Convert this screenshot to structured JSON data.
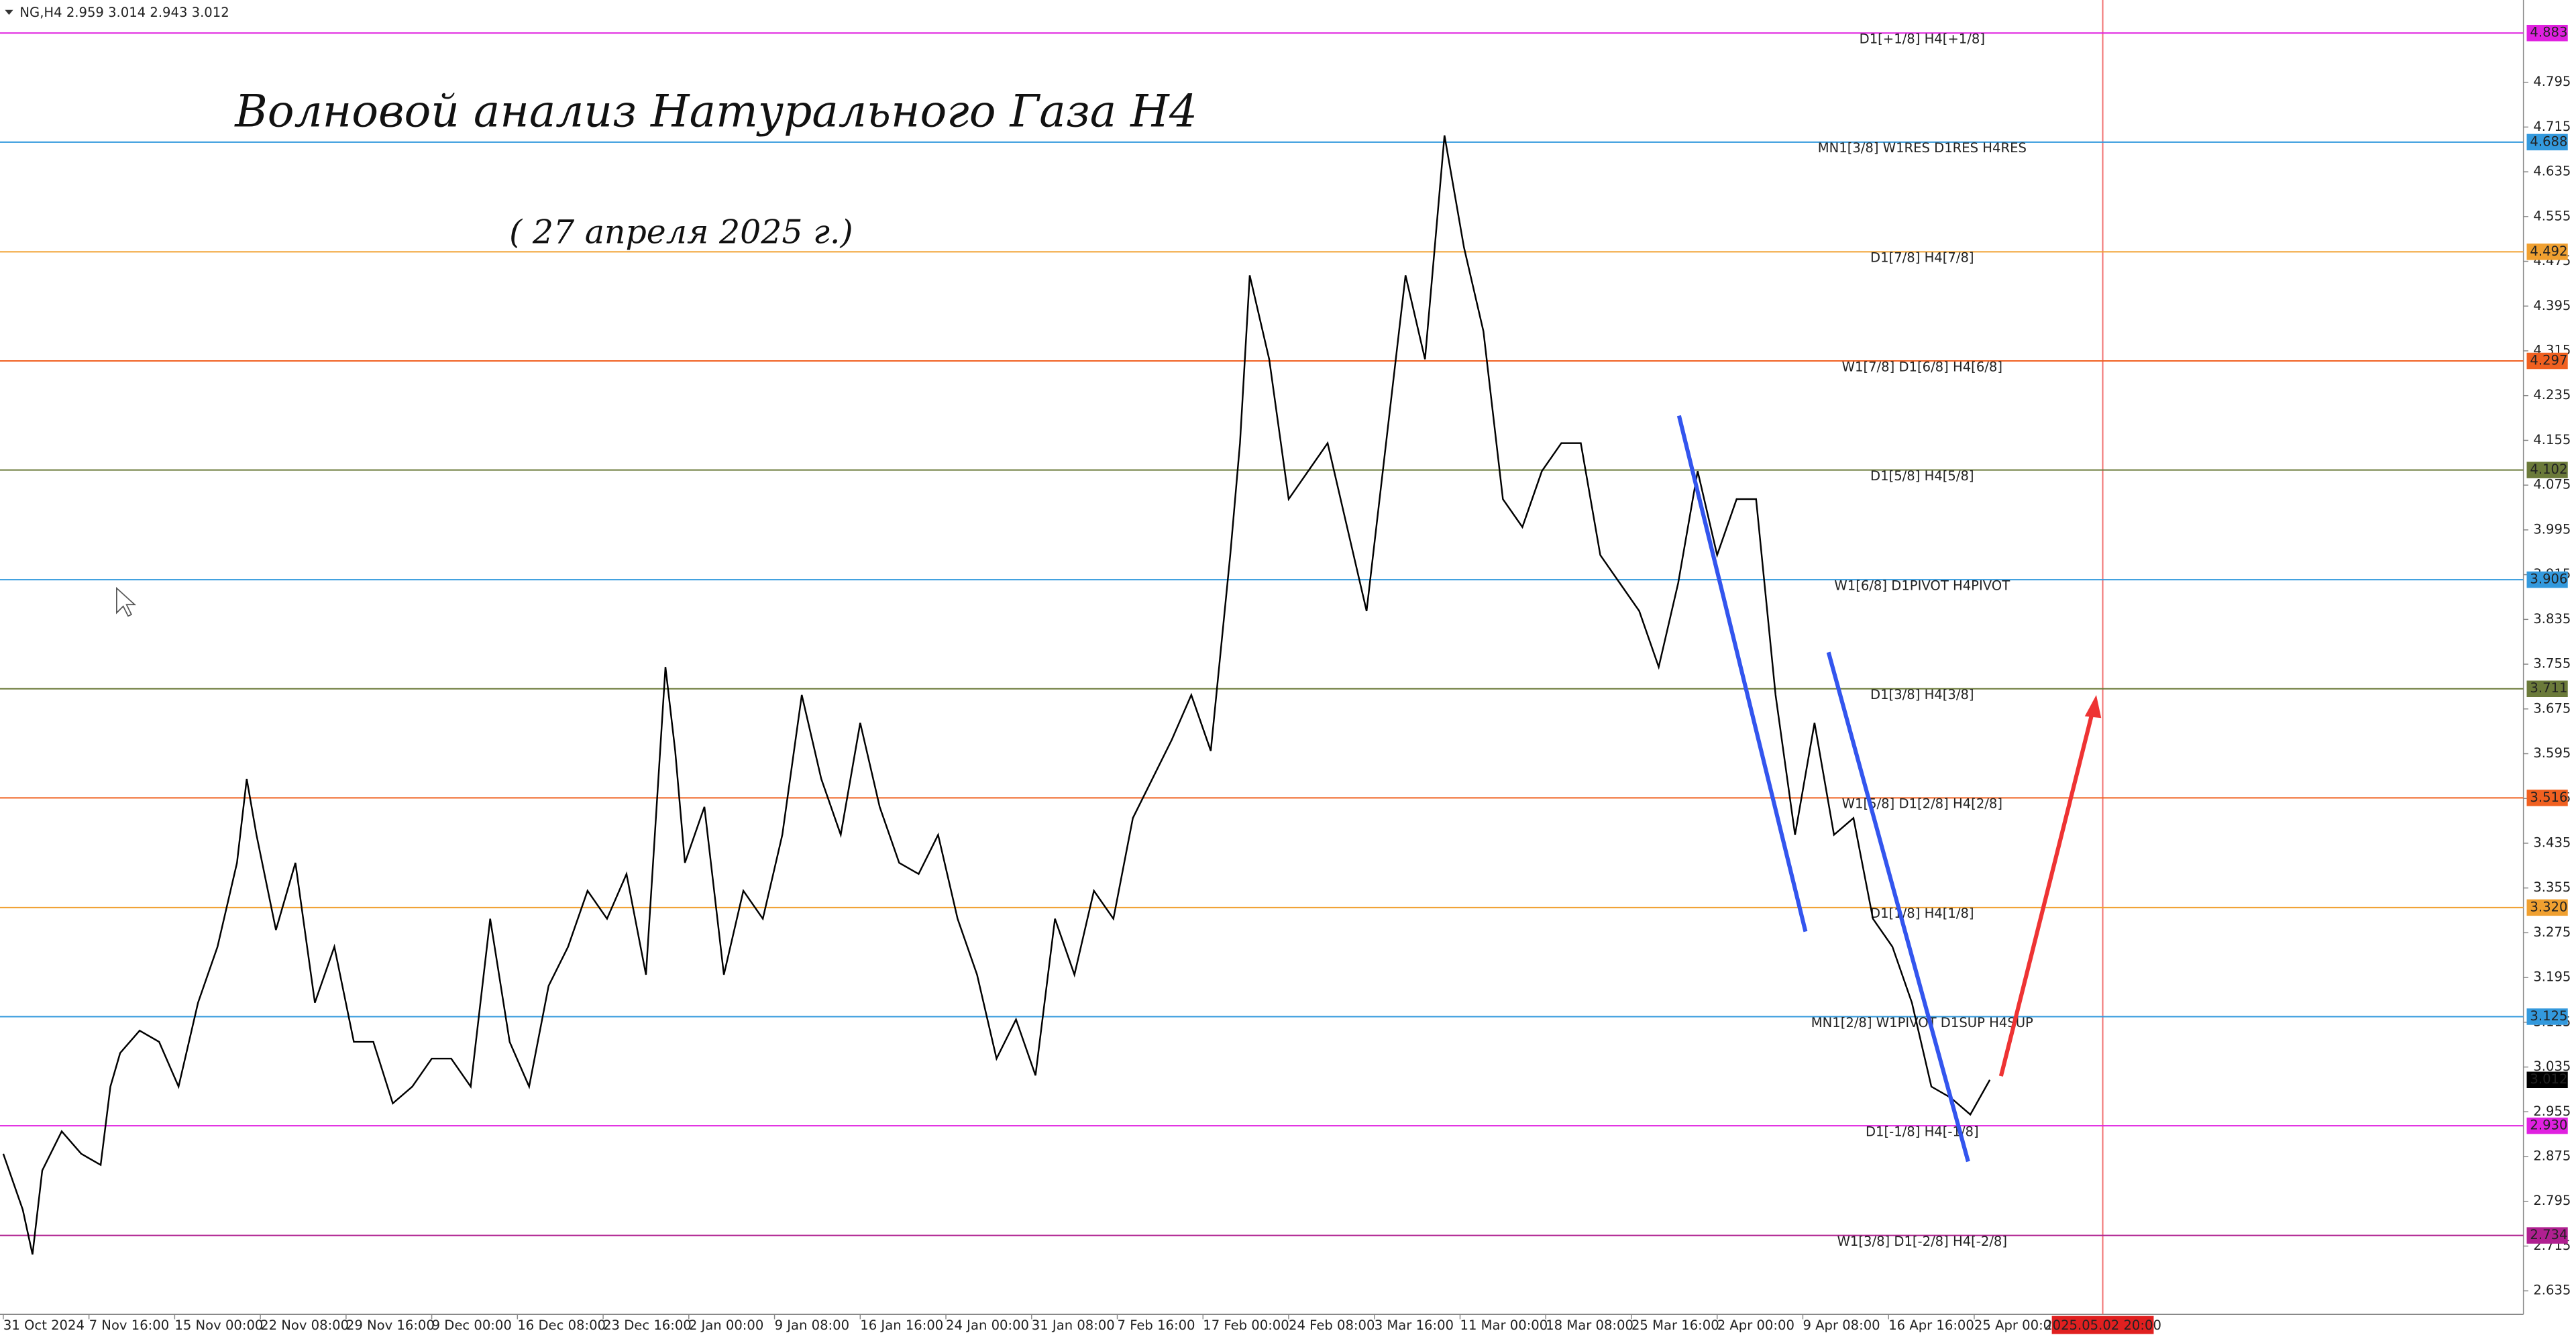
{
  "chart_data": {
    "type": "line",
    "header": "NG,H4  2.959 3.014 2.943 3.012",
    "annotations": [
      "Волновой анализ Натурального Газа H4",
      "( 27 апреля 2025  г.)"
    ],
    "series": [
      {
        "name": "NG,H4",
        "color": "#000000",
        "x": [
          0,
          10,
          15,
          20,
          30,
          40,
          50,
          55,
          60,
          70,
          80,
          90,
          100,
          110,
          120,
          125,
          130,
          140,
          150,
          160,
          170,
          180,
          190,
          200,
          210,
          220,
          230,
          240,
          250,
          260,
          270,
          280,
          290,
          300,
          310,
          320,
          330,
          340,
          345,
          350,
          360,
          370,
          380,
          390,
          400,
          410,
          420,
          430,
          440,
          450,
          460,
          470,
          480,
          490,
          500,
          510,
          520,
          530,
          540,
          550,
          560,
          570,
          580,
          590,
          600,
          610,
          620,
          630,
          635,
          640,
          650,
          660,
          670,
          680,
          690,
          700,
          710,
          720,
          730,
          740,
          745,
          750,
          760,
          770,
          780,
          790,
          800,
          810,
          820,
          830,
          840,
          850,
          860,
          870,
          880,
          890,
          900,
          910,
          920,
          930,
          940,
          950,
          960,
          970,
          980,
          990,
          1000,
          1010,
          1020
        ],
        "values": [
          2.88,
          2.78,
          2.7,
          2.85,
          2.92,
          2.88,
          2.86,
          3.0,
          3.06,
          3.1,
          3.08,
          3.0,
          3.15,
          3.25,
          3.4,
          3.55,
          3.45,
          3.28,
          3.4,
          3.15,
          3.25,
          3.08,
          3.08,
          2.97,
          3.0,
          3.05,
          3.05,
          3.0,
          3.3,
          3.08,
          3.0,
          3.18,
          3.25,
          3.35,
          3.3,
          3.38,
          3.2,
          3.75,
          3.6,
          3.4,
          3.5,
          3.2,
          3.35,
          3.3,
          3.45,
          3.7,
          3.55,
          3.45,
          3.65,
          3.5,
          3.4,
          3.38,
          3.45,
          3.3,
          3.2,
          3.05,
          3.12,
          3.02,
          3.3,
          3.2,
          3.35,
          3.3,
          3.48,
          3.55,
          3.62,
          3.7,
          3.6,
          3.95,
          4.15,
          4.45,
          4.3,
          4.05,
          4.1,
          4.15,
          4.0,
          3.85,
          4.15,
          4.45,
          4.3,
          4.7,
          4.6,
          4.5,
          4.35,
          4.05,
          4.0,
          4.1,
          4.15,
          4.15,
          3.95,
          3.9,
          3.85,
          3.75,
          3.9,
          4.1,
          3.95,
          4.05,
          4.05,
          3.7,
          3.45,
          3.65,
          3.45,
          3.48,
          3.3,
          3.25,
          3.15,
          3.0,
          2.98,
          2.95,
          3.012
        ]
      }
    ],
    "xlim": [
      0,
      1294
    ],
    "xticks": [
      {
        "value": 0,
        "label": "31 Oct 2024"
      },
      {
        "value": 44,
        "label": "7 Nov 16:00"
      },
      {
        "value": 88,
        "label": "15 Nov 00:00"
      },
      {
        "value": 132,
        "label": "22 Nov 08:00"
      },
      {
        "value": 176,
        "label": "29 Nov 16:00"
      },
      {
        "value": 220,
        "label": "9 Dec 00:00"
      },
      {
        "value": 264,
        "label": "16 Dec 08:00"
      },
      {
        "value": 308,
        "label": "23 Dec 16:00"
      },
      {
        "value": 352,
        "label": "2 Jan 00:00"
      },
      {
        "value": 396,
        "label": "9 Jan 08:00"
      },
      {
        "value": 440,
        "label": "16 Jan 16:00"
      },
      {
        "value": 484,
        "label": "24 Jan 00:00"
      },
      {
        "value": 528,
        "label": "31 Jan 08:00"
      },
      {
        "value": 572,
        "label": "7 Feb 16:00"
      },
      {
        "value": 616,
        "label": "17 Feb 00:00"
      },
      {
        "value": 660,
        "label": "24 Feb 08:00"
      },
      {
        "value": 704,
        "label": "3 Mar 16:00"
      },
      {
        "value": 748,
        "label": "11 Mar 00:00"
      },
      {
        "value": 792,
        "label": "18 Mar 08:00"
      },
      {
        "value": 836,
        "label": "25 Mar 16:00"
      },
      {
        "value": 880,
        "label": "2 Apr 00:00"
      },
      {
        "value": 924,
        "label": "9 Apr 08:00"
      },
      {
        "value": 968,
        "label": "16 Apr 16:00"
      },
      {
        "value": 1012,
        "label": "25 Apr 00:00"
      }
    ],
    "cursor_time": {
      "value": 1078,
      "label": "2025.05.02 20:00"
    },
    "ylim": [
      2.593,
      4.942
    ],
    "yticks": [
      4.795,
      4.715,
      4.635,
      4.555,
      4.475,
      4.395,
      4.315,
      4.235,
      4.155,
      4.075,
      3.995,
      3.915,
      3.835,
      3.755,
      3.675,
      3.595,
      3.515,
      3.435,
      3.355,
      3.275,
      3.195,
      3.115,
      3.035,
      2.955,
      2.875,
      2.795,
      2.715,
      2.635
    ],
    "levels": [
      {
        "name": "D1[+1/8] H4[+1/8]",
        "value": 4.883,
        "price_label": "4.883",
        "color": "#e020e0"
      },
      {
        "name": "MN1[3/8] W1RES D1RES H4RES",
        "value": 4.688,
        "price_label": "4.688",
        "color": "#3399dd"
      },
      {
        "name": "D1[7/8] H4[7/8]",
        "value": 4.492,
        "price_label": "4.492",
        "color": "#f0a030"
      },
      {
        "name": "W1[7/8] D1[6/8] H4[6/8]",
        "value": 4.297,
        "price_label": "4.297",
        "color": "#f06020"
      },
      {
        "name": "D1[5/8] H4[5/8]",
        "value": 4.102,
        "price_label": "4.102",
        "color": "#6b7a3a"
      },
      {
        "name": "W1[6/8] D1PIVOT H4PIVOT",
        "value": 3.906,
        "price_label": "3.906",
        "color": "#3399dd"
      },
      {
        "name": "D1[3/8] H4[3/8]",
        "value": 3.711,
        "price_label": "3.711",
        "color": "#6b7a3a"
      },
      {
        "name": "W1[5/8] D1[2/8] H4[2/8]",
        "value": 3.516,
        "price_label": "3.516",
        "color": "#f06020"
      },
      {
        "name": "D1[1/8] H4[1/8]",
        "value": 3.32,
        "price_label": "3.320",
        "color": "#f0a030"
      },
      {
        "name": "MN1[2/8] W1PIVOT D1SUP H4SUP",
        "value": 3.125,
        "price_label": "3.125",
        "color": "#3399dd"
      },
      {
        "name": "D1[-1/8] H4[-1/8]",
        "value": 2.93,
        "price_label": "2.930",
        "color": "#e020e0"
      },
      {
        "name": "W1[3/8] D1[-2/8] H4[-2/8]",
        "value": 2.734,
        "price_label": "2.734",
        "color": "#b02090"
      }
    ],
    "current": {
      "value": 3.012,
      "label": "3.012"
    }
  }
}
